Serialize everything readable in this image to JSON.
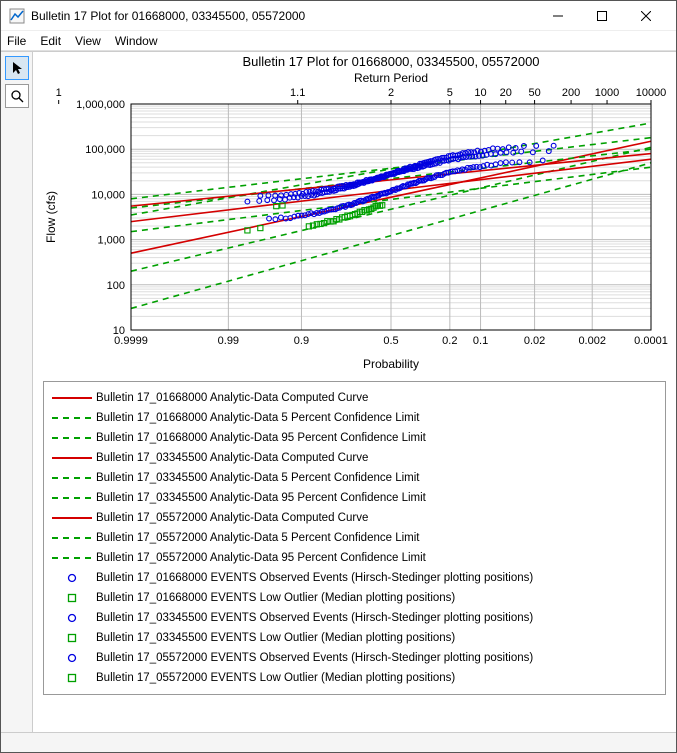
{
  "window": {
    "title": "Bulletin 17 Plot for 01668000, 03345500, 05572000"
  },
  "menu": {
    "items": [
      "File",
      "Edit",
      "View",
      "Window"
    ]
  },
  "chart": {
    "title": "Bulletin 17 Plot for 01668000, 03345500, 05572000",
    "x_top": {
      "title": "Return Period",
      "ticks": [
        1.0,
        1.1,
        2,
        5,
        10,
        20,
        50,
        200,
        1000,
        10000
      ]
    },
    "x_bottom": {
      "title": "Probability",
      "ticks": [
        0.9999,
        0.99,
        0.9,
        0.5,
        0.2,
        0.1,
        0.02,
        0.002,
        0.0001
      ]
    },
    "y": {
      "title": "Flow (cfs)",
      "ticks": [
        10,
        100,
        1000,
        10000,
        100000,
        1000000
      ],
      "tick_labels": [
        "10",
        "100",
        "1,000",
        "10,000",
        "100,000",
        "1,000,000"
      ],
      "log": true
    },
    "colors": {
      "red": "#d40000",
      "green": "#00a000",
      "blue": "#0000e0",
      "grid": "#bbbbbb",
      "grid_minor": "#dddddd",
      "border": "#000000",
      "bg": "#ffffff"
    },
    "series": {
      "comp1": {
        "type": "line",
        "dash": "none",
        "color": "#d40000",
        "y0": 500,
        "y1": 150000
      },
      "lo1": {
        "type": "line",
        "dash": "6,5",
        "color": "#00a000",
        "y0": 200,
        "y1": 110000
      },
      "hi1": {
        "type": "line",
        "dash": "6,5",
        "color": "#00a000",
        "y0": 3500,
        "y1": 380000
      },
      "comp2": {
        "type": "line",
        "dash": "none",
        "color": "#d40000",
        "y0": 2500,
        "y1": 60000
      },
      "lo2": {
        "type": "line",
        "dash": "6,5",
        "color": "#00a000",
        "y0": 1500,
        "y1": 40000
      },
      "hi2": {
        "type": "line",
        "dash": "6,5",
        "color": "#00a000",
        "y0": 5000,
        "y1": 100000
      },
      "comp3": {
        "type": "line",
        "dash": "none",
        "color": "#d40000",
        "y0": 5500,
        "y1": 80000
      },
      "lo3": {
        "type": "line",
        "dash": "6,5",
        "color": "#00a000",
        "y0": 30,
        "y1": 50000
      },
      "hi3": {
        "type": "line",
        "dash": "6,5",
        "color": "#00a000",
        "y0": 8000,
        "y1": 180000
      }
    },
    "scatter": {
      "obs_upper": {
        "marker": "circle",
        "color": "#0000e0",
        "p_from": 0.98,
        "p_to": 0.01,
        "y_from": 7000,
        "y_to": 120000,
        "n": 110
      },
      "obs_lower": {
        "marker": "circle",
        "color": "#0000e0",
        "p_from": 0.96,
        "p_to": 0.015,
        "y_from": 2800,
        "y_to": 55000,
        "n": 110
      },
      "obs_mid": {
        "marker": "circle",
        "color": "#0000e0",
        "p_from": 0.97,
        "p_to": 0.012,
        "y_from": 9000,
        "y_to": 90000,
        "n": 105
      },
      "out_a": {
        "marker": "square",
        "color": "#00a000",
        "p_from": 0.88,
        "p_to": 0.55,
        "y_from": 2000,
        "y_to": 6000,
        "n": 28
      },
      "out_b": {
        "marker": "square",
        "color": "#00a000",
        "points": [
          [
            0.95,
            5500
          ],
          [
            0.94,
            5700
          ],
          [
            0.98,
            1600
          ],
          [
            0.97,
            1800
          ]
        ]
      }
    }
  },
  "legend": [
    {
      "kind": "line",
      "color": "#d40000",
      "dash": "none",
      "label": "Bulletin 17_01668000 Analytic-Data Computed Curve"
    },
    {
      "kind": "line",
      "color": "#00a000",
      "dash": "6,5",
      "label": "Bulletin 17_01668000 Analytic-Data 5 Percent Confidence Limit"
    },
    {
      "kind": "line",
      "color": "#00a000",
      "dash": "6,5",
      "label": "Bulletin 17_01668000 Analytic-Data 95 Percent Confidence Limit"
    },
    {
      "kind": "line",
      "color": "#d40000",
      "dash": "none",
      "label": "Bulletin 17_03345500 Analytic-Data Computed Curve"
    },
    {
      "kind": "line",
      "color": "#00a000",
      "dash": "6,5",
      "label": "Bulletin 17_03345500 Analytic-Data 5 Percent Confidence Limit"
    },
    {
      "kind": "line",
      "color": "#00a000",
      "dash": "6,5",
      "label": "Bulletin 17_03345500 Analytic-Data 95 Percent Confidence Limit"
    },
    {
      "kind": "line",
      "color": "#d40000",
      "dash": "none",
      "label": "Bulletin 17_05572000 Analytic-Data Computed Curve"
    },
    {
      "kind": "line",
      "color": "#00a000",
      "dash": "6,5",
      "label": "Bulletin 17_05572000 Analytic-Data 5 Percent Confidence Limit"
    },
    {
      "kind": "line",
      "color": "#00a000",
      "dash": "6,5",
      "label": "Bulletin 17_05572000 Analytic-Data 95 Percent Confidence Limit"
    },
    {
      "kind": "marker",
      "shape": "circle",
      "color": "#0000e0",
      "label": "Bulletin 17_01668000 EVENTS Observed Events (Hirsch-Stedinger plotting positions)"
    },
    {
      "kind": "marker",
      "shape": "square",
      "color": "#00a000",
      "label": "Bulletin 17_01668000 EVENTS Low Outlier (Median plotting positions)"
    },
    {
      "kind": "marker",
      "shape": "circle",
      "color": "#0000e0",
      "label": "Bulletin 17_03345500 EVENTS Observed Events (Hirsch-Stedinger plotting positions)"
    },
    {
      "kind": "marker",
      "shape": "square",
      "color": "#00a000",
      "label": "Bulletin 17_03345500 EVENTS Low Outlier (Median plotting positions)"
    },
    {
      "kind": "marker",
      "shape": "circle",
      "color": "#0000e0",
      "label": "Bulletin 17_05572000 EVENTS Observed Events (Hirsch-Stedinger plotting positions)"
    },
    {
      "kind": "marker",
      "shape": "square",
      "color": "#00a000",
      "label": "Bulletin 17_05572000 EVENTS Low Outlier (Median plotting positions)"
    }
  ]
}
